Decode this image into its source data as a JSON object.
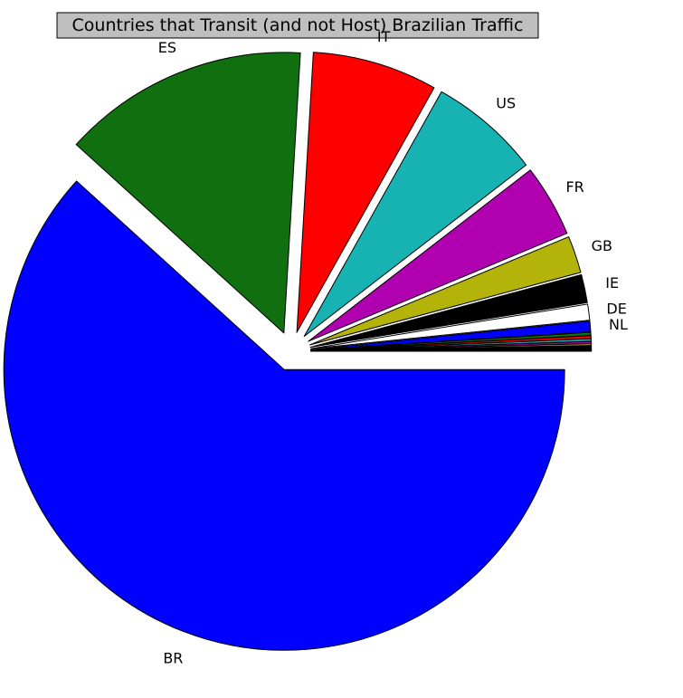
{
  "chart_data": {
    "type": "pie",
    "title": "Countries that Transit (and not Host) Brazilian Traffic",
    "start_angle_deg": 0,
    "direction": "clockwise",
    "exploded": true,
    "slices": [
      {
        "label": "BR",
        "value": 60.8,
        "color": "#0000ff"
      },
      {
        "label": "ES",
        "value": 14.0,
        "color": "#107010"
      },
      {
        "label": "IT",
        "value": 7.1,
        "color": "#ff0000"
      },
      {
        "label": "US",
        "value": 6.3,
        "color": "#17b3b3"
      },
      {
        "label": "FR",
        "value": 4.1,
        "color": "#b000b0"
      },
      {
        "label": "GB",
        "value": 2.1,
        "color": "#b3b30a"
      },
      {
        "label": "IE",
        "value": 1.6,
        "color": "#000000"
      },
      {
        "label": "DE",
        "value": 0.9,
        "color": "#ffffff"
      },
      {
        "label": "NL",
        "value": 0.6,
        "color": "#0000ff"
      },
      {
        "label": "",
        "value": 0.18,
        "color": "#107010"
      },
      {
        "label": "",
        "value": 0.16,
        "color": "#ff0000"
      },
      {
        "label": "",
        "value": 0.14,
        "color": "#17b3b3"
      },
      {
        "label": "",
        "value": 0.12,
        "color": "#b000b0"
      },
      {
        "label": "",
        "value": 0.1,
        "color": "#b3b30a"
      },
      {
        "label": "",
        "value": 0.09,
        "color": "#000000"
      },
      {
        "label": "",
        "value": 0.08,
        "color": "#000000"
      },
      {
        "label": "",
        "value": 0.07,
        "color": "#000000"
      },
      {
        "label": "",
        "value": 0.06,
        "color": "#000000"
      }
    ]
  }
}
